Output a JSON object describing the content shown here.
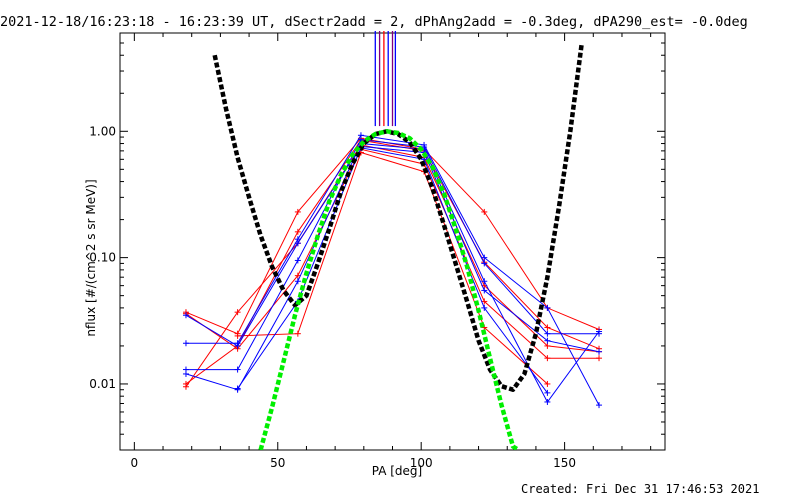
{
  "title": "2021-12-18/16:23:18 - 16:23:39 UT, dSectr2add = 2, dPhAng2add = -0.3deg, dPA290_est= -0.0deg",
  "footer": "Created: Fri Dec 31 17:46:53 2021",
  "colors": {
    "red": "#ff0000",
    "blue": "#0000ff",
    "black": "#000000",
    "green": "#00ee00",
    "purple": "#800080"
  },
  "chart_data": {
    "type": "line",
    "xlabel": "PA [deg]",
    "ylabel": "nflux [#/(cm^2 s sr MeV)]",
    "xlim": [
      -5,
      185
    ],
    "ylim": [
      0.003,
      6
    ],
    "ylog": true,
    "xticks": [
      0,
      50,
      100,
      150
    ],
    "xtick_labels": [
      "0",
      "50",
      "100",
      "150"
    ],
    "yticks": [
      0.01,
      0.1,
      1.0
    ],
    "ytick_labels": [
      "0.01",
      "0.10",
      "1.00"
    ],
    "vertical_markers": {
      "ymin": 1.1,
      "ymax": 6,
      "lines": [
        {
          "x": 84.0,
          "color": "#0000ff"
        },
        {
          "x": 85.5,
          "color": "#800080"
        },
        {
          "x": 87.0,
          "color": "#ff0000"
        },
        {
          "x": 88.5,
          "color": "#0000ff"
        },
        {
          "x": 90.0,
          "color": "#800080"
        },
        {
          "x": 91.0,
          "color": "#0000ff"
        }
      ]
    },
    "series": [
      {
        "color": "#ff0000",
        "x": [
          18,
          36,
          57,
          79,
          101,
          122,
          144,
          162
        ],
        "y": [
          0.037,
          0.025,
          0.23,
          0.88,
          0.72,
          0.23,
          0.04,
          0.027
        ]
      },
      {
        "color": "#ff0000",
        "x": [
          18,
          36,
          57,
          79,
          101,
          122,
          144,
          162
        ],
        "y": [
          0.01,
          0.02,
          0.16,
          0.85,
          0.7,
          0.092,
          0.028,
          0.019
        ]
      },
      {
        "color": "#ff0000",
        "x": [
          18,
          36,
          57,
          79,
          101,
          122,
          144,
          162
        ],
        "y": [
          0.0095,
          0.037,
          0.13,
          0.78,
          0.62,
          0.06,
          0.02,
          0.018
        ]
      },
      {
        "color": "#ff0000",
        "x": [
          18,
          36,
          57,
          79,
          101,
          122,
          144,
          162
        ],
        "y": [
          0.036,
          0.019,
          0.072,
          0.72,
          0.55,
          0.045,
          0.016,
          0.016
        ]
      },
      {
        "color": "#ff0000",
        "x": [
          36,
          57,
          79,
          101,
          122,
          144
        ],
        "y": [
          0.024,
          0.025,
          0.68,
          0.48,
          0.028,
          0.01
        ]
      },
      {
        "color": "#0000ff",
        "x": [
          18,
          36,
          57,
          79,
          101,
          122,
          144,
          162
        ],
        "y": [
          0.021,
          0.021,
          0.14,
          0.93,
          0.78,
          0.1,
          0.04,
          0.0068
        ]
      },
      {
        "color": "#0000ff",
        "x": [
          18,
          36,
          57,
          79,
          101,
          122,
          144,
          162
        ],
        "y": [
          0.013,
          0.013,
          0.095,
          0.86,
          0.75,
          0.09,
          0.025,
          0.025
        ]
      },
      {
        "color": "#0000ff",
        "x": [
          18,
          36,
          57,
          79,
          101,
          122,
          144,
          162
        ],
        "y": [
          0.012,
          0.009,
          0.065,
          0.8,
          0.72,
          0.065,
          0.0072,
          0.026
        ]
      },
      {
        "color": "#0000ff",
        "x": [
          18,
          36,
          57,
          79,
          101,
          122,
          144,
          162
        ],
        "y": [
          0.035,
          0.02,
          0.13,
          0.76,
          0.68,
          0.055,
          0.022,
          0.018
        ]
      },
      {
        "color": "#0000ff",
        "x": [
          36,
          57,
          79,
          101,
          122,
          144
        ],
        "y": [
          0.0092,
          0.045,
          0.74,
          0.6,
          0.04,
          0.0085
        ]
      }
    ],
    "fits": [
      {
        "color": "#000000",
        "style": "dashed",
        "x": [
          28,
          32,
          36,
          40,
          44,
          48,
          52,
          56,
          60,
          64,
          68,
          72,
          76,
          80,
          84,
          88,
          92,
          96,
          100,
          104,
          108,
          112,
          116,
          120,
          124,
          128,
          132,
          136,
          140,
          144,
          148,
          152,
          156
        ],
        "y": [
          4.0,
          1.5,
          0.62,
          0.3,
          0.15,
          0.085,
          0.055,
          0.042,
          0.05,
          0.09,
          0.17,
          0.33,
          0.55,
          0.8,
          0.95,
          1.0,
          0.95,
          0.82,
          0.6,
          0.35,
          0.18,
          0.09,
          0.045,
          0.022,
          0.013,
          0.0096,
          0.009,
          0.012,
          0.025,
          0.07,
          0.25,
          1.0,
          5.0
        ]
      },
      {
        "color": "#00ee00",
        "style": "dashed",
        "x": [
          44,
          48,
          52,
          56,
          60,
          64,
          68,
          72,
          76,
          80,
          84,
          88,
          92,
          96,
          100,
          104,
          108,
          112,
          116,
          120,
          124,
          128,
          132,
          134
        ],
        "y": [
          0.003,
          0.0065,
          0.015,
          0.035,
          0.075,
          0.15,
          0.28,
          0.45,
          0.65,
          0.83,
          0.95,
          1.0,
          0.97,
          0.88,
          0.72,
          0.52,
          0.32,
          0.17,
          0.085,
          0.038,
          0.016,
          0.0068,
          0.0032,
          0.003
        ]
      }
    ]
  }
}
